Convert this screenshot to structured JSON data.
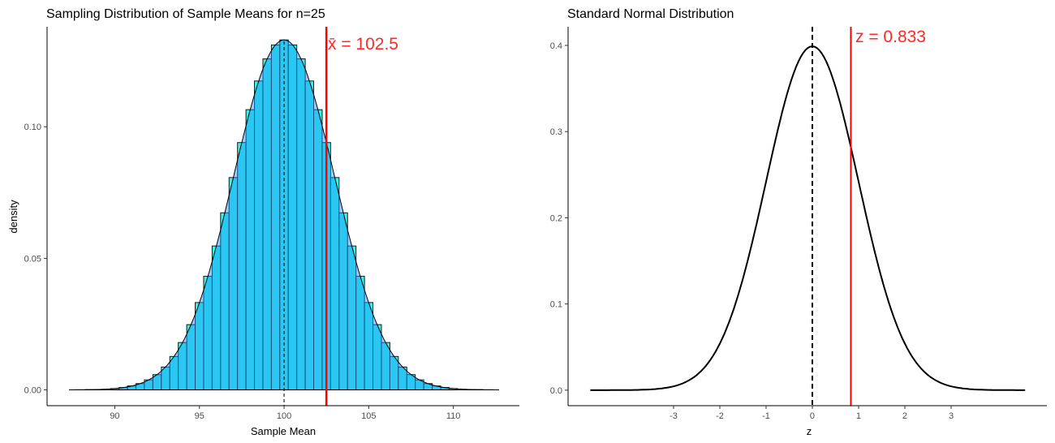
{
  "chart_data": [
    {
      "type": "bar",
      "title": "Sampling Distribution of Sample Means for n=25",
      "xlabel": "Sample Mean",
      "ylabel": "density",
      "xlim": [
        86,
        113.9
      ],
      "ylim": [
        -0.006,
        0.138
      ],
      "xticks": [
        90,
        95,
        100,
        105,
        110
      ],
      "yticks": [
        "0.00",
        "0.05",
        "0.10"
      ],
      "ytick_values": [
        0,
        0.05,
        0.1
      ],
      "grid": false,
      "bin_width": 0.5,
      "bins": {
        "centers": [
          88,
          88.5,
          89,
          89.5,
          90,
          90.5,
          91,
          91.5,
          92,
          92.5,
          93,
          93.5,
          94,
          94.5,
          95,
          95.5,
          96,
          96.5,
          97,
          97.5,
          98,
          98.5,
          99,
          99.5,
          100,
          100.5,
          101,
          101.5,
          102,
          102.5,
          103,
          103.5,
          104,
          104.5,
          105,
          105.5,
          106,
          106.5,
          107,
          107.5,
          108,
          108.5,
          109,
          109.5,
          110,
          110.5,
          111,
          111.5,
          112
        ],
        "density": [
          0.0,
          0.0001,
          0.0001,
          0.0002,
          0.0005,
          0.0009,
          0.0015,
          0.0024,
          0.0038,
          0.0058,
          0.0087,
          0.0127,
          0.018,
          0.0248,
          0.0332,
          0.0432,
          0.0547,
          0.0673,
          0.0807,
          0.094,
          0.1065,
          0.1174,
          0.1258,
          0.1311,
          0.133,
          0.1311,
          0.1258,
          0.1174,
          0.1065,
          0.094,
          0.0807,
          0.0673,
          0.0547,
          0.0432,
          0.0332,
          0.0248,
          0.018,
          0.0127,
          0.0087,
          0.0058,
          0.0038,
          0.0024,
          0.0015,
          0.0009,
          0.0005,
          0.0002,
          0.0001,
          0.0001,
          0.0
        ]
      },
      "density_curve": {
        "distribution": "normal",
        "mean": 100,
        "sd": 3,
        "x_range": [
          87.3,
          112.7
        ]
      },
      "mean_line": {
        "x": 100,
        "style": "dashed",
        "color": "#000000"
      },
      "sample_mean_line": {
        "x": 102.5,
        "color": "#ff0000"
      },
      "annotation": "x̄ = 102.5",
      "colors": {
        "bar_fill": "#33f5ea",
        "density_fill": "#1e90ff",
        "annotation": "#ff2a2a"
      }
    },
    {
      "type": "line",
      "title": "Standard Normal Distribution",
      "xlabel": "z",
      "ylabel": "",
      "xlim": [
        -5.28,
        5.07
      ],
      "ylim": [
        -0.018,
        0.4216
      ],
      "xticks": [
        -3,
        -2,
        -1,
        0,
        1,
        2,
        3
      ],
      "yticks": [
        "0.0",
        "0.1",
        "0.2",
        "0.3",
        "0.4"
      ],
      "ytick_values": [
        0,
        0.1,
        0.2,
        0.3,
        0.4
      ],
      "grid": false,
      "curve": {
        "distribution": "normal",
        "mean": 0,
        "sd": 1,
        "x_range": [
          -4.8,
          4.63
        ]
      },
      "mean_line": {
        "x": 0,
        "style": "dashed",
        "color": "#000000"
      },
      "z_line": {
        "x": 0.833,
        "color": "#ff0000"
      },
      "annotation": "z = 0.833",
      "colors": {
        "line": "#000000",
        "annotation": "#ff2a2a"
      }
    }
  ]
}
